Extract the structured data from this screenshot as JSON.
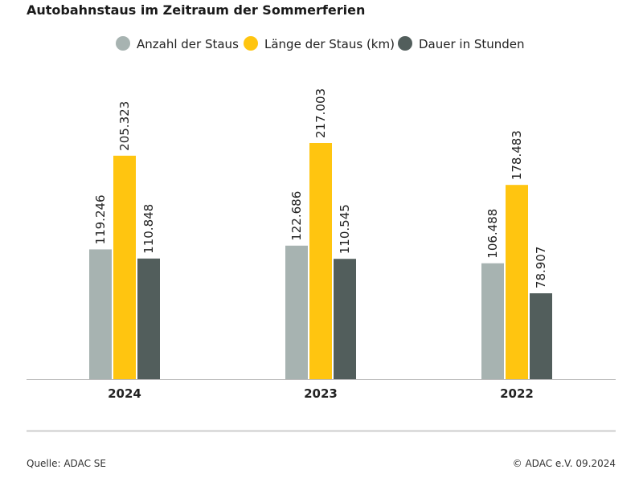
{
  "chart_data": {
    "type": "bar",
    "title": "Autobahnstaus im Zeitraum der Sommerferien",
    "categories": [
      "2024",
      "2023",
      "2022"
    ],
    "series": [
      {
        "name": "Anzahl der Staus",
        "color": "#a7b3b1",
        "values": [
          119246,
          122686,
          106488
        ],
        "labels": [
          "119.246",
          "122.686",
          "106.488"
        ]
      },
      {
        "name": "Länge der Staus (km)",
        "color": "#ffc510",
        "values": [
          205323,
          217003,
          178483
        ],
        "labels": [
          "205.323",
          "217.003",
          "178.483"
        ]
      },
      {
        "name": "Dauer in Stunden",
        "color": "#525e5c",
        "values": [
          110848,
          110545,
          78907
        ],
        "labels": [
          "110.848",
          "110.545",
          "78.907"
        ]
      }
    ],
    "ylim": [
      0,
      240000
    ],
    "grid": false,
    "legend_position": "top-center",
    "xlabel": "",
    "ylabel": ""
  },
  "footer": {
    "source": "Quelle: ADAC SE",
    "copyright": "© ADAC e.V. 09.2024"
  }
}
